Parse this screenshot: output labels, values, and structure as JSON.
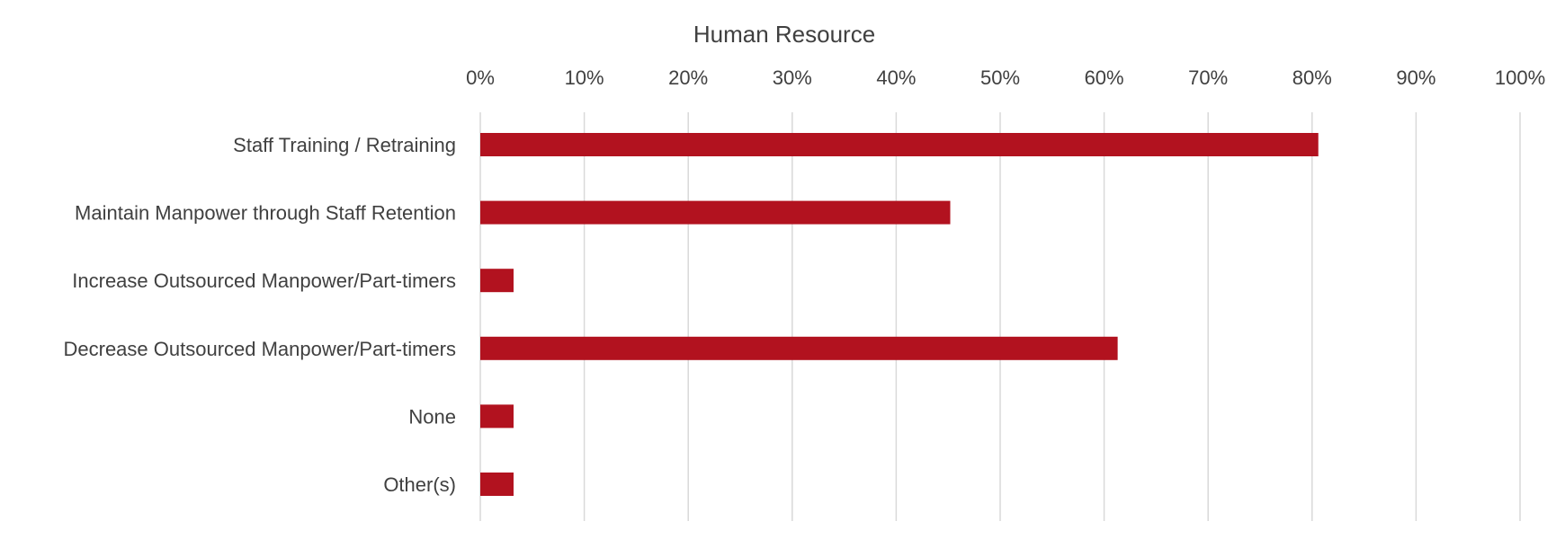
{
  "chart_data": {
    "type": "bar",
    "orientation": "horizontal",
    "title": "Human Resource",
    "categories": [
      "Staff Training / Retraining",
      "Maintain Manpower through Staff Retention",
      "Increase Outsourced Manpower/Part-timers",
      "Decrease Outsourced Manpower/Part-timers",
      "None",
      "Other(s)"
    ],
    "values": [
      80.6,
      45.2,
      3.2,
      61.3,
      3.2,
      3.2
    ],
    "xlim": [
      0,
      100
    ],
    "x_ticks": [
      "0%",
      "10%",
      "20%",
      "30%",
      "40%",
      "50%",
      "60%",
      "70%",
      "80%",
      "90%",
      "100%"
    ],
    "x_axis_position": "top",
    "grid": true,
    "legend": "none",
    "bar_color": "#b2121f",
    "grid_color": "#d9d9d9",
    "text_color": "#404040"
  }
}
